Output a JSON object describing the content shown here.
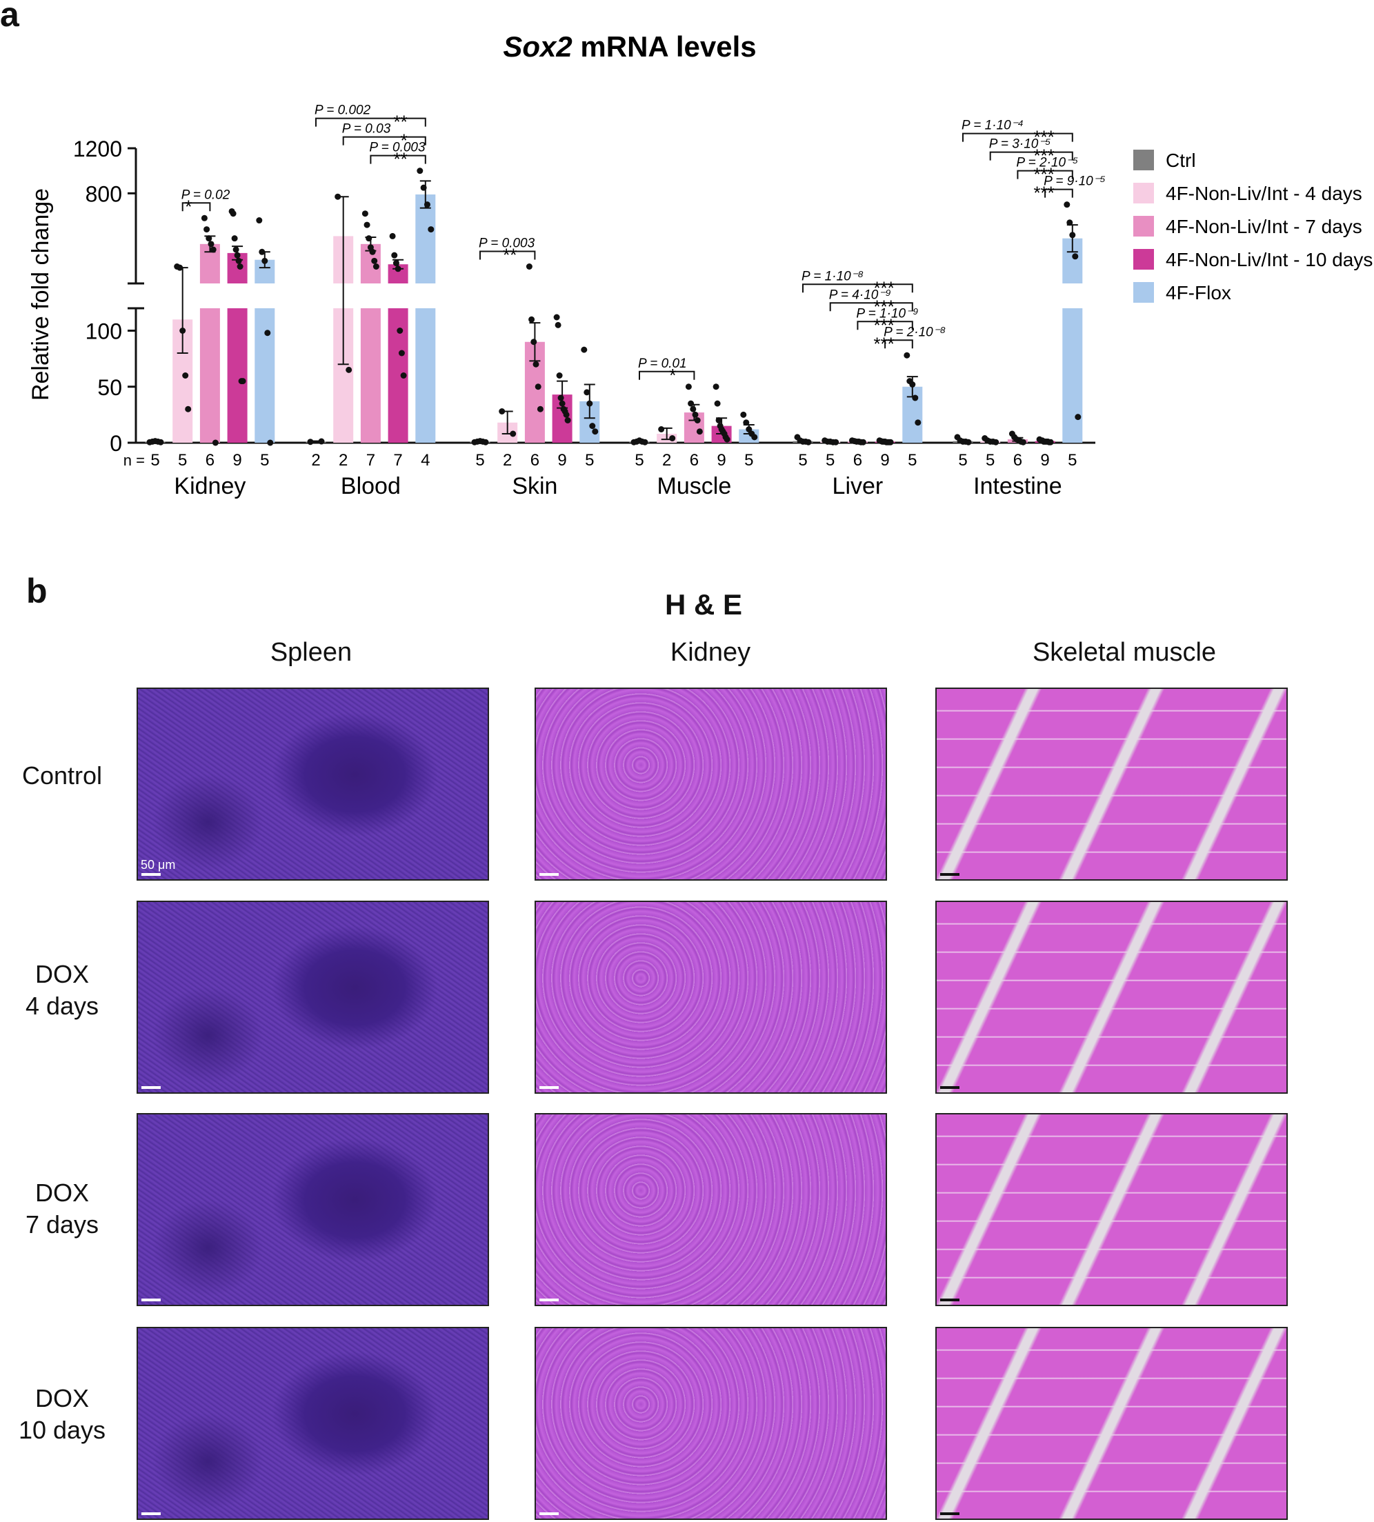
{
  "panel_a_letter": "a",
  "panel_b_letter": "b",
  "chart_data": {
    "type": "bar",
    "title_italic": "Sox2",
    "title_rest": " mRNA levels",
    "ylabel": "Relative fold change",
    "y_axis_break": true,
    "lower_ylim": [
      0,
      120
    ],
    "upper_ylim": [
      0,
      1200
    ],
    "yticks_lower": [
      "0",
      "50",
      "100"
    ],
    "yticks_upper": [
      "800",
      "1200"
    ],
    "error_bars": "mean ± s.e.m.",
    "n_prefix": "n =",
    "legend_position": "right",
    "series": [
      {
        "name": "Ctrl",
        "color": "#808080"
      },
      {
        "name": "4F-Non-Liv/Int - 4 days",
        "color": "#f7cde3"
      },
      {
        "name": "4F-Non-Liv/Int - 7 days",
        "color": "#e88fc2"
      },
      {
        "name": "4F-Non-Liv/Int - 10 days",
        "color": "#cc3a98"
      },
      {
        "name": "4F-Flox",
        "color": "#a9c9ec"
      }
    ],
    "groups": [
      {
        "tissue": "Kidney",
        "bars": [
          {
            "series": 0,
            "n": "5",
            "value": 1,
            "err": 0.5,
            "points": [
              0.5,
              1,
              1.5,
              1,
              0.5
            ]
          },
          {
            "series": 1,
            "n": "5",
            "value": 110,
            "err": 30,
            "points": [
              150,
              140,
              100,
              60,
              30
            ]
          },
          {
            "series": 2,
            "n": "6",
            "value": 350,
            "err": 70,
            "points": [
              580,
              480,
              400,
              350,
              300,
              0
            ]
          },
          {
            "series": 3,
            "n": "9",
            "value": 270,
            "err": 60,
            "points": [
              640,
              620,
              400,
              300,
              250,
              200,
              150,
              55,
              55
            ]
          },
          {
            "series": 4,
            "n": "5",
            "value": 210,
            "err": 70,
            "points": [
              560,
              280,
              200,
              98,
              0
            ]
          }
        ]
      },
      {
        "tissue": "Blood",
        "bars": [
          {
            "series": 0,
            "n": "2",
            "value": 1,
            "err": 0.5,
            "points": [
              0.8,
              1.2
            ]
          },
          {
            "series": 1,
            "n": "2",
            "value": 420,
            "err": 350,
            "points": [
              770,
              65
            ]
          },
          {
            "series": 2,
            "n": "7",
            "value": 350,
            "err": 60,
            "points": [
              620,
              520,
              400,
              320,
              280,
              200,
              150
            ]
          },
          {
            "series": 3,
            "n": "7",
            "value": 170,
            "err": 40,
            "points": [
              420,
              250,
              180,
              130,
              100,
              80,
              60
            ]
          },
          {
            "series": 4,
            "n": "4",
            "value": 790,
            "err": 120,
            "points": [
              1000,
              850,
              700,
              480
            ]
          }
        ]
      },
      {
        "tissue": "Skin",
        "bars": [
          {
            "series": 0,
            "n": "5",
            "value": 1,
            "err": 0.5,
            "points": [
              0.5,
              1,
              1.5,
              1,
              0.5
            ]
          },
          {
            "series": 1,
            "n": "2",
            "value": 18,
            "err": 10,
            "points": [
              28,
              8
            ]
          },
          {
            "series": 2,
            "n": "6",
            "value": 90,
            "err": 17,
            "points": [
              150,
              110,
              90,
              70,
              50,
              30
            ]
          },
          {
            "series": 3,
            "n": "9",
            "value": 43,
            "err": 12,
            "points": [
              112,
              105,
              60,
              40,
              35,
              30,
              28,
              25,
              20
            ]
          },
          {
            "series": 4,
            "n": "5",
            "value": 37,
            "err": 15,
            "points": [
              83,
              45,
              35,
              15,
              10
            ]
          }
        ]
      },
      {
        "tissue": "Muscle",
        "bars": [
          {
            "series": 0,
            "n": "5",
            "value": 1,
            "err": 0.5,
            "points": [
              0.5,
              1,
              2,
              1,
              0.5
            ]
          },
          {
            "series": 1,
            "n": "2",
            "value": 8,
            "err": 5,
            "points": [
              12,
              4
            ]
          },
          {
            "series": 2,
            "n": "6",
            "value": 27,
            "err": 7,
            "points": [
              50,
              35,
              30,
              25,
              20,
              10
            ]
          },
          {
            "series": 3,
            "n": "9",
            "value": 15,
            "err": 7,
            "points": [
              50,
              35,
              20,
              15,
              12,
              10,
              8,
              5,
              3
            ]
          },
          {
            "series": 4,
            "n": "5",
            "value": 12,
            "err": 4,
            "points": [
              25,
              18,
              12,
              8,
              5
            ]
          }
        ]
      },
      {
        "tissue": "Liver",
        "bars": [
          {
            "series": 0,
            "n": "5",
            "value": 1.5,
            "err": 1,
            "points": [
              5,
              2,
              1,
              1,
              0.5
            ]
          },
          {
            "series": 1,
            "n": "5",
            "value": 1,
            "err": 0.5,
            "points": [
              2,
              1,
              1,
              0.5,
              0.5
            ]
          },
          {
            "series": 2,
            "n": "6",
            "value": 1,
            "err": 0.5,
            "points": [
              2,
              1.5,
              1,
              1,
              0.5,
              0.5
            ]
          },
          {
            "series": 3,
            "n": "9",
            "value": 1,
            "err": 0.5,
            "points": [
              2,
              1.5,
              1,
              1,
              1,
              0.5,
              0.5,
              0.5,
              0.5
            ]
          },
          {
            "series": 4,
            "n": "5",
            "value": 50,
            "err": 9,
            "points": [
              78,
              55,
              52,
              40,
              18
            ]
          }
        ]
      },
      {
        "tissue": "Intestine",
        "bars": [
          {
            "series": 0,
            "n": "5",
            "value": 1.5,
            "err": 1,
            "points": [
              5,
              2,
              1,
              1,
              0.5
            ]
          },
          {
            "series": 1,
            "n": "5",
            "value": 1.5,
            "err": 1,
            "points": [
              4,
              2,
              1,
              1,
              0.5
            ]
          },
          {
            "series": 2,
            "n": "6",
            "value": 3,
            "err": 1.5,
            "points": [
              8,
              5,
              3,
              2,
              1,
              0.5
            ]
          },
          {
            "series": 3,
            "n": "9",
            "value": 1.5,
            "err": 0.5,
            "points": [
              3,
              2,
              2,
              1,
              1,
              1,
              1,
              0.5,
              0.5
            ]
          },
          {
            "series": 4,
            "n": "5",
            "value": 400,
            "err": 120,
            "points": [
              700,
              540,
              430,
              240,
              23
            ]
          }
        ]
      }
    ],
    "significance": [
      {
        "group": 0,
        "from": 1,
        "to": 2,
        "p_label": "P = 0.02",
        "stars": "*",
        "tier": 0
      },
      {
        "group": 1,
        "from": 0,
        "to": 4,
        "p_label": "P = 0.002",
        "stars": "**",
        "tier": 2
      },
      {
        "group": 1,
        "from": 1,
        "to": 4,
        "p_label": "P = 0.03",
        "stars": "*",
        "tier": 1
      },
      {
        "group": 1,
        "from": 2,
        "to": 4,
        "p_label": "P = 0.003",
        "stars": "**",
        "tier": 0
      },
      {
        "group": 2,
        "from": 0,
        "to": 2,
        "p_label": "P = 0.003",
        "stars": "**",
        "tier": 0
      },
      {
        "group": 3,
        "from": 0,
        "to": 2,
        "p_label": "P = 0.01",
        "stars": "*",
        "tier": 0
      },
      {
        "group": 4,
        "from": 0,
        "to": 4,
        "p_label": "P = 1·10⁻⁸",
        "stars": "***",
        "tier": 3
      },
      {
        "group": 4,
        "from": 1,
        "to": 4,
        "p_label": "P = 4·10⁻⁹",
        "stars": "***",
        "tier": 2
      },
      {
        "group": 4,
        "from": 2,
        "to": 4,
        "p_label": "P = 1·10⁻⁹",
        "stars": "***",
        "tier": 1
      },
      {
        "group": 4,
        "from": 3,
        "to": 4,
        "p_label": "P = 2·10⁻⁸",
        "stars": "***",
        "tier": 0
      },
      {
        "group": 5,
        "from": 0,
        "to": 4,
        "p_label": "P = 1·10⁻⁴",
        "stars": "***",
        "tier": 3
      },
      {
        "group": 5,
        "from": 1,
        "to": 4,
        "p_label": "P = 3·10⁻⁵",
        "stars": "***",
        "tier": 2
      },
      {
        "group": 5,
        "from": 2,
        "to": 4,
        "p_label": "P = 2·10⁻⁵",
        "stars": "***",
        "tier": 1
      },
      {
        "group": 5,
        "from": 3,
        "to": 4,
        "p_label": "P = 9·10⁻⁵",
        "stars": "***",
        "tier": 0
      }
    ]
  },
  "panel_b": {
    "title": "H & E",
    "columns": [
      "Spleen",
      "Kidney",
      "Skeletal muscle"
    ],
    "rows": [
      "Control",
      "DOX\n4 days",
      "DOX\n7 days",
      "DOX\n10 days"
    ],
    "scale_bar_label": "50 μm"
  }
}
